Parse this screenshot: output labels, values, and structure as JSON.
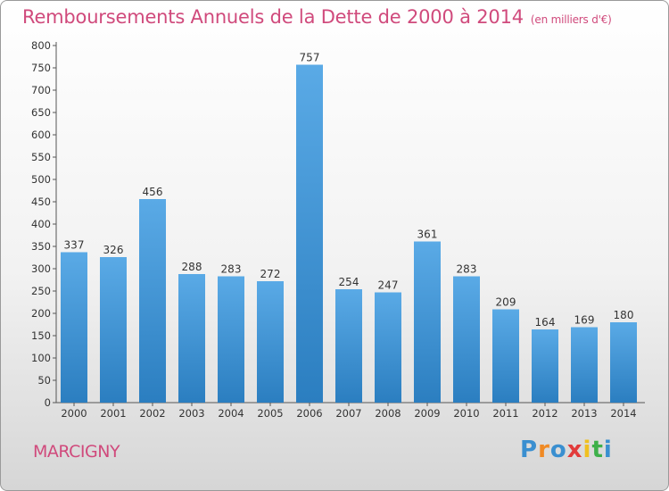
{
  "header": {
    "title": "Remboursements Annuels de la Dette de 2000 à 2014",
    "unit": "(en milliers d'€)"
  },
  "footer": {
    "town": "MARCIGNY",
    "logo_letters": [
      "P",
      "r",
      "o",
      "x",
      "i",
      "t",
      "i"
    ]
  },
  "colors": {
    "title": "#d04a7c",
    "bar_top": "#5aaae6",
    "bar_bottom": "#2b7ec0",
    "logo": [
      "#3a8fd0",
      "#f08a24",
      "#3a8fd0",
      "#e23b3b",
      "#f0c020",
      "#3db04a",
      "#3a8fd0"
    ]
  },
  "chart_data": {
    "type": "bar",
    "title": "Remboursements Annuels de la Dette de 2000 à 2014",
    "ylabel": "(en milliers d'€)",
    "xlabel": "",
    "categories": [
      "2000",
      "2001",
      "2002",
      "2003",
      "2004",
      "2005",
      "2006",
      "2007",
      "2008",
      "2009",
      "2010",
      "2011",
      "2012",
      "2013",
      "2014"
    ],
    "values": [
      337,
      326,
      456,
      288,
      283,
      272,
      757,
      254,
      247,
      361,
      283,
      209,
      164,
      169,
      180
    ],
    "ylim": [
      0,
      800
    ],
    "yticks": [
      0,
      50,
      100,
      150,
      200,
      250,
      300,
      350,
      400,
      450,
      500,
      550,
      600,
      650,
      700,
      750,
      800
    ],
    "grid": false,
    "legend": "none"
  }
}
